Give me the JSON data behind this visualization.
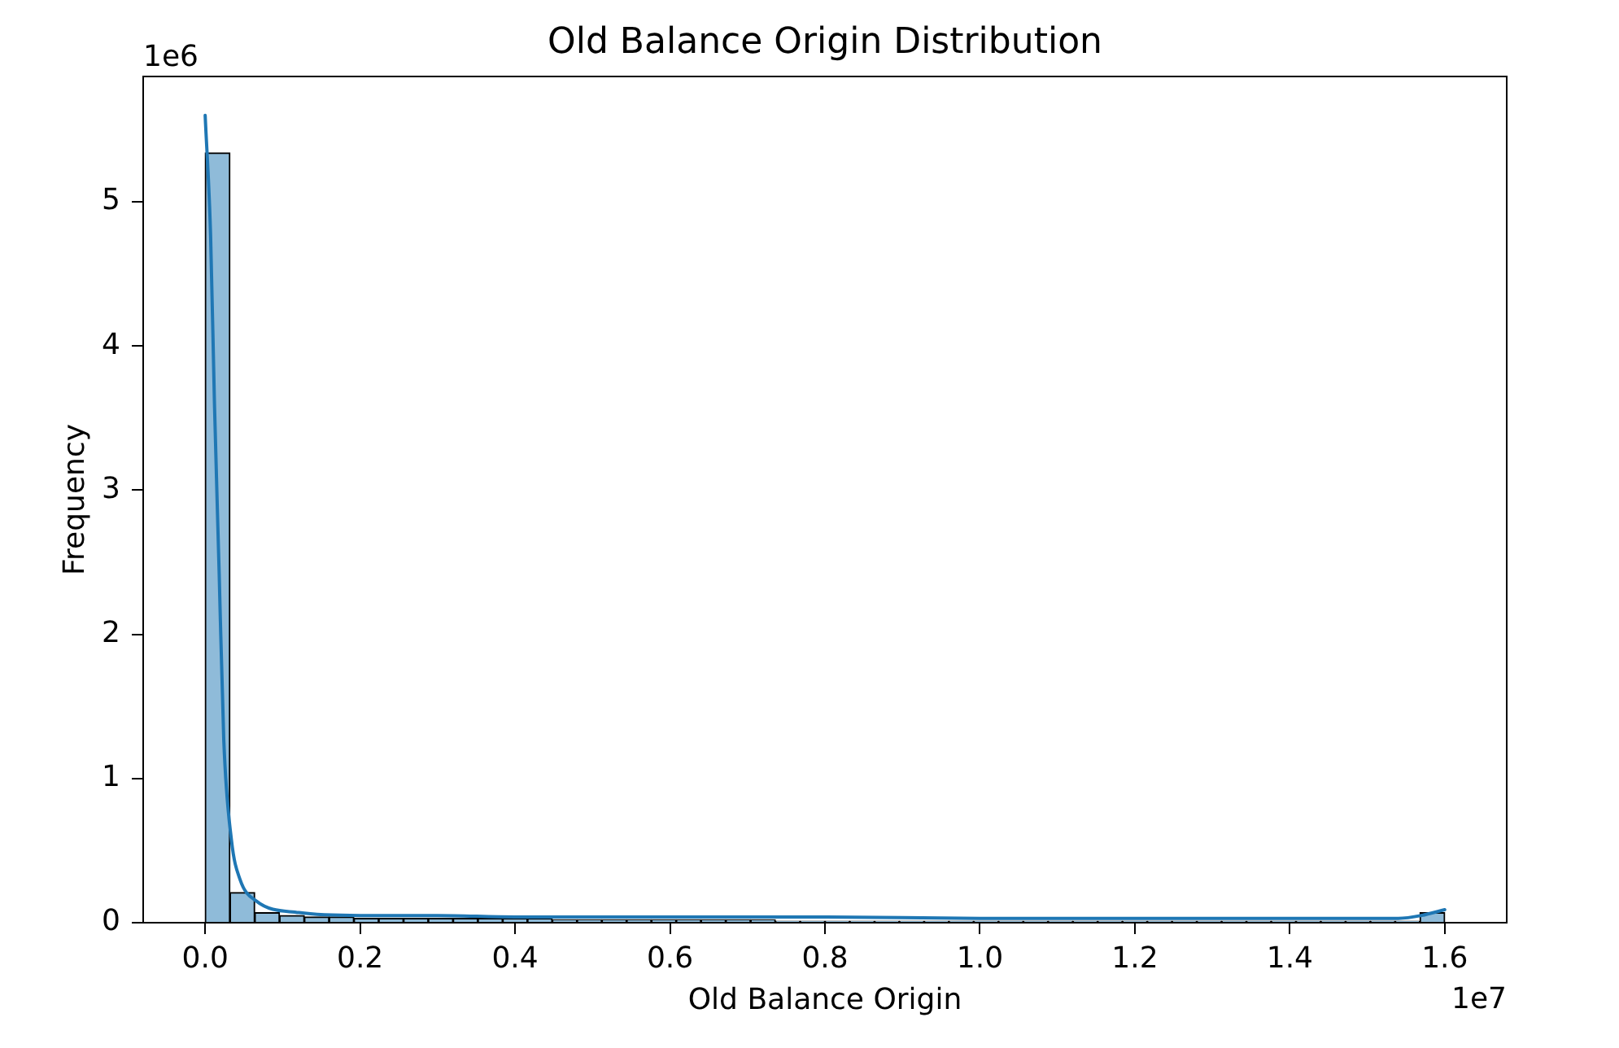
{
  "chart_data": {
    "type": "histogram",
    "title": "Old Balance Origin Distribution",
    "xlabel": "Old Balance Origin",
    "ylabel": "Frequency",
    "annotations": [
      "1e6",
      "1e7"
    ],
    "bins": [
      0,
      0.032,
      0.064,
      0.096,
      0.128,
      0.16,
      0.192,
      0.224,
      0.256,
      0.288,
      0.32,
      0.352,
      0.384,
      0.416,
      0.448,
      0.48,
      0.512,
      0.544,
      0.576,
      0.608,
      0.64,
      0.672,
      0.704,
      0.736,
      0.768,
      0.8,
      0.832,
      0.864,
      0.896,
      0.928,
      0.96,
      0.992,
      1.024,
      1.056,
      1.088,
      1.12,
      1.152,
      1.184,
      1.216,
      1.248,
      1.28,
      1.312,
      1.344,
      1.376,
      1.408,
      1.44,
      1.472,
      1.504,
      1.536,
      1.568,
      1.6
    ],
    "series": [
      {
        "color": "#8fbbd9",
        "values": [
          5.34,
          0.21,
          0.07,
          0.05,
          0.04,
          0.04,
          0.03,
          0.03,
          0.03,
          0.03,
          0.03,
          0.03,
          0.03,
          0.03,
          0.02,
          0.02,
          0.02,
          0.02,
          0.02,
          0.02,
          0.02,
          0.02,
          0.02,
          0.01,
          0.01,
          0.01,
          0.01,
          0.01,
          0.01,
          0.01,
          0.01,
          0.01,
          0.01,
          0.01,
          0.01,
          0.01,
          0.01,
          0.01,
          0.01,
          0.01,
          0.01,
          0.01,
          0.01,
          0.01,
          0.01,
          0.01,
          0.01,
          0.01,
          0.01,
          0.07
        ]
      },
      {
        "type": "line",
        "color": "#1f77b4",
        "x": [
          0,
          0.007,
          0.012,
          0.018,
          0.024,
          0.034,
          0.045,
          0.066,
          0.121,
          0.2,
          0.3,
          0.4,
          0.6,
          0.8,
          1.0,
          1.2,
          1.4,
          1.5,
          1.54,
          1.57,
          1.6
        ],
        "values": [
          5.6,
          4.77,
          3.6,
          2.44,
          1.27,
          0.57,
          0.3,
          0.15,
          0.07,
          0.05,
          0.05,
          0.04,
          0.04,
          0.04,
          0.03,
          0.03,
          0.03,
          0.03,
          0.03,
          0.05,
          0.09
        ]
      }
    ],
    "xlim": [
      -0.08,
      1.68
    ],
    "ylim": [
      0,
      5.87
    ],
    "xticks": [
      {
        "value": 0,
        "label": "0.0"
      },
      0.2,
      0.4,
      0.6,
      0.8,
      {
        "value": 1,
        "label": "1.0"
      },
      1.2,
      1.4,
      1.6
    ],
    "yticks": [
      0,
      1,
      2,
      3,
      4,
      5
    ]
  }
}
